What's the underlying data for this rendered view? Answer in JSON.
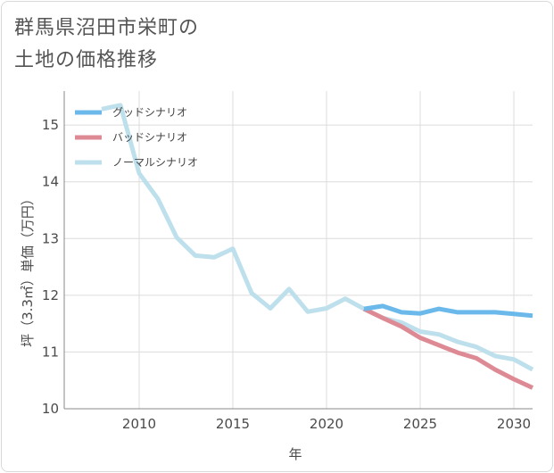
{
  "title_lines": [
    "群馬県沼田市栄町の",
    "土地の価格推移"
  ],
  "colors": {
    "good": "#6bb9ea",
    "bad": "#de8a95",
    "normal": "#bde0ec",
    "grid": "#dcdcdc",
    "axis": "#888888"
  },
  "chart_data": {
    "type": "line",
    "title": "群馬県沼田市栄町の土地の価格推移",
    "xlabel": "年",
    "ylabel": "坪（3.3㎡）単価（万円）",
    "xlim": [
      2006,
      2031
    ],
    "ylim": [
      10,
      15.6
    ],
    "xticks": [
      2010,
      2015,
      2020,
      2025,
      2030
    ],
    "yticks": [
      10,
      11,
      12,
      13,
      14,
      15
    ],
    "legend_position": "top-left",
    "series": [
      {
        "name": "グッドシナリオ",
        "key": "good",
        "x": [
          2022,
          2023,
          2024,
          2025,
          2026,
          2027,
          2028,
          2029,
          2030,
          2031
        ],
        "y": [
          11.76,
          11.81,
          11.7,
          11.68,
          11.76,
          11.7,
          11.7,
          11.7,
          11.67,
          11.64
        ]
      },
      {
        "name": "バッドシナリオ",
        "key": "bad",
        "x": [
          2022,
          2023,
          2024,
          2025,
          2026,
          2027,
          2028,
          2029,
          2030,
          2031
        ],
        "y": [
          11.76,
          11.6,
          11.45,
          11.25,
          11.12,
          10.99,
          10.89,
          10.69,
          10.52,
          10.37
        ]
      },
      {
        "name": "ノーマルシナリオ",
        "key": "normal",
        "x": [
          2008,
          2009,
          2010,
          2011,
          2012,
          2013,
          2014,
          2015,
          2016,
          2017,
          2018,
          2019,
          2020,
          2021,
          2022,
          2023,
          2024,
          2025,
          2026,
          2027,
          2028,
          2029,
          2030,
          2031
        ],
        "y": [
          15.28,
          15.35,
          14.15,
          13.7,
          13.02,
          12.7,
          12.67,
          12.82,
          12.04,
          11.77,
          12.11,
          11.71,
          11.77,
          11.94,
          11.76,
          11.6,
          11.52,
          11.36,
          11.31,
          11.18,
          11.09,
          10.93,
          10.87,
          10.69
        ]
      }
    ]
  }
}
